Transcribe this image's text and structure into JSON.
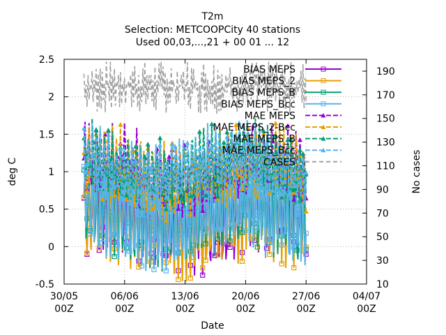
{
  "chart_data": {
    "type": "line",
    "title": [
      "T2m",
      "Selection: METCOOPCity     40 stations",
      "Used 00,03,...,21 + 00 01 ... 12"
    ],
    "xlabel": "Date",
    "ylabel": "deg C",
    "y2label": "No cases",
    "x_ticks": [
      {
        "line1": "30/05",
        "line2": "00Z"
      },
      {
        "line1": "06/06",
        "line2": "00Z"
      },
      {
        "line1": "13/06",
        "line2": "00Z"
      },
      {
        "line1": "20/06",
        "line2": "00Z"
      },
      {
        "line1": "27/06",
        "line2": "00Z"
      },
      {
        "line1": "04/07",
        "line2": "00Z"
      }
    ],
    "x_range_days": [
      0,
      35
    ],
    "ylim": [
      -0.5,
      2.5
    ],
    "y_ticks": [
      "-0.5",
      "0",
      "0.5",
      "1",
      "1.5",
      "2",
      "2.5"
    ],
    "y2lim": [
      10,
      200
    ],
    "y2_ticks": [
      "10",
      "30",
      "50",
      "70",
      "90",
      "110",
      "130",
      "150",
      "170",
      "190"
    ],
    "grid": true,
    "legend_position": "top-right",
    "series": [
      {
        "name": "BIAS MEPS",
        "color": "#9400d3",
        "axis": "y",
        "kind": "bias",
        "base": 0.4,
        "amp": 0.5,
        "phase": 0.0
      },
      {
        "name": "BIAS MEPS_2",
        "color": "#e69f00",
        "axis": "y",
        "kind": "bias",
        "base": 0.35,
        "amp": 0.55,
        "phase": 0.4
      },
      {
        "name": "BIAS MEPS_B",
        "color": "#009e73",
        "axis": "y",
        "kind": "bias",
        "base": 0.45,
        "amp": 0.5,
        "phase": 0.8
      },
      {
        "name": "BIAS MEPS_Bcc",
        "color": "#56b4e9",
        "axis": "y",
        "kind": "bias",
        "base": 0.4,
        "amp": 0.45,
        "phase": 1.2
      },
      {
        "name": "MAE MEPS",
        "color": "#9400d3",
        "axis": "y",
        "kind": "mae",
        "base": 1.05,
        "amp": 0.35,
        "phase": 0.2
      },
      {
        "name": "MAE MEPS_2-Bcc",
        "color": "#e69f00",
        "axis": "y",
        "kind": "mae",
        "base": 1.0,
        "amp": 0.4,
        "phase": 0.6
      },
      {
        "name": "MAE MEPS_B",
        "color": "#009e73",
        "axis": "y",
        "kind": "mae",
        "base": 1.1,
        "amp": 0.35,
        "phase": 1.0
      },
      {
        "name": "MAE MEPS_Bcc",
        "color": "#56b4e9",
        "axis": "y",
        "kind": "mae",
        "base": 1.05,
        "amp": 0.35,
        "phase": 1.4
      },
      {
        "name": "CASES",
        "color": "#a0a0a0",
        "axis": "y2",
        "kind": "cases",
        "base": 180,
        "amp": 12,
        "phase": 0.0
      }
    ],
    "legend_labels": [
      "BIAS MEPS",
      "BIAS MEPS_2",
      "BIAS MEPS_B",
      "BIAS MEPS_Bcc",
      "MAE MEPS",
      "MAE MEPS_2-Bcc",
      "MAE MEPS_B",
      "MAE MEPS_Bcc",
      "CASES"
    ]
  }
}
